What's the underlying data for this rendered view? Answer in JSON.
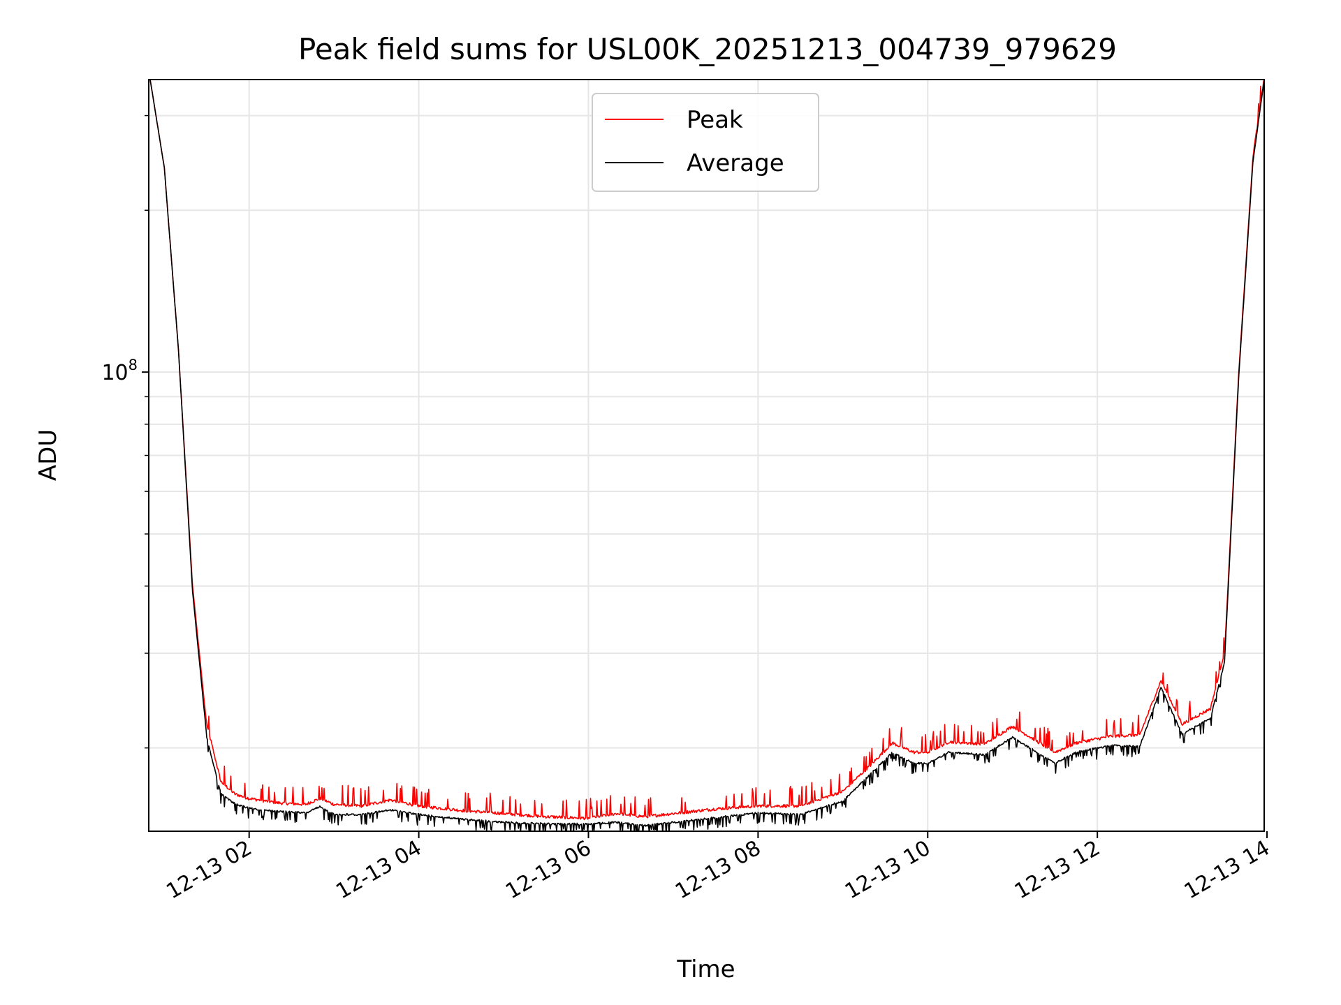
{
  "chart_data": {
    "type": "line",
    "title": "Peak field sums for USL00K_20251213_004739_979629",
    "xlabel": "Time",
    "ylabel": "ADU",
    "y_scale": "log",
    "grid": true,
    "legend_position": "upper center",
    "xlim": [
      "2025-12-13 00:49",
      "2025-12-13 13:58"
    ],
    "ylim": [
      14000000.0,
      350000000.0
    ],
    "x_ticks": [
      {
        "value": "2025-12-13 02:00",
        "label": "12-13 02"
      },
      {
        "value": "2025-12-13 04:00",
        "label": "12-13 04"
      },
      {
        "value": "2025-12-13 06:00",
        "label": "12-13 06"
      },
      {
        "value": "2025-12-13 08:00",
        "label": "12-13 08"
      },
      {
        "value": "2025-12-13 10:00",
        "label": "12-13 10"
      },
      {
        "value": "2025-12-13 12:00",
        "label": "12-13 12"
      },
      {
        "value": "2025-12-13 14:00",
        "label": "12-13 14"
      }
    ],
    "y_ticks": [
      {
        "value": 100000000,
        "base": "10",
        "exp": "8"
      }
    ],
    "series": [
      {
        "name": "Peak",
        "color": "#ff0000",
        "x": [
          "2025-12-13 00:50",
          "2025-12-13 01:00",
          "2025-12-13 01:10",
          "2025-12-13 01:20",
          "2025-12-13 01:30",
          "2025-12-13 01:40",
          "2025-12-13 01:50",
          "2025-12-13 02:00",
          "2025-12-13 02:20",
          "2025-12-13 02:40",
          "2025-12-13 02:50",
          "2025-12-13 03:00",
          "2025-12-13 03:20",
          "2025-12-13 03:40",
          "2025-12-13 04:00",
          "2025-12-13 04:30",
          "2025-12-13 05:00",
          "2025-12-13 05:30",
          "2025-12-13 06:00",
          "2025-12-13 06:20",
          "2025-12-13 06:40",
          "2025-12-13 07:00",
          "2025-12-13 07:30",
          "2025-12-13 08:00",
          "2025-12-13 08:30",
          "2025-12-13 09:00",
          "2025-12-13 09:20",
          "2025-12-13 09:35",
          "2025-12-13 09:50",
          "2025-12-13 10:00",
          "2025-12-13 10:15",
          "2025-12-13 10:40",
          "2025-12-13 11:00",
          "2025-12-13 11:30",
          "2025-12-13 11:45",
          "2025-12-13 12:10",
          "2025-12-13 12:30",
          "2025-12-13 12:45",
          "2025-12-13 13:00",
          "2025-12-13 13:20",
          "2025-12-13 13:30",
          "2025-12-13 13:40",
          "2025-12-13 13:50",
          "2025-12-13 13:58"
        ],
        "y": [
          350000000,
          240000000,
          110000000,
          40000000,
          22000000,
          17200000,
          16300000,
          16000000,
          15700000,
          15600000,
          16000000,
          15600000,
          15500000,
          15900000,
          15500000,
          15200000,
          15000000,
          14800000,
          14700000,
          15000000,
          14800000,
          15000000,
          15300000,
          15500000,
          15500000,
          16500000,
          18500000,
          20300000,
          19500000,
          19500000,
          20400000,
          20200000,
          21800000,
          19500000,
          20300000,
          20900000,
          21000000,
          26500000,
          22000000,
          23500000,
          30000000,
          100000000,
          250000000,
          350000000
        ],
        "spike_noise": true
      },
      {
        "name": "Average",
        "color": "#000000",
        "x": [
          "2025-12-13 00:50",
          "2025-12-13 01:00",
          "2025-12-13 01:10",
          "2025-12-13 01:20",
          "2025-12-13 01:30",
          "2025-12-13 01:40",
          "2025-12-13 01:50",
          "2025-12-13 02:00",
          "2025-12-13 02:20",
          "2025-12-13 02:40",
          "2025-12-13 02:50",
          "2025-12-13 03:00",
          "2025-12-13 03:20",
          "2025-12-13 03:40",
          "2025-12-13 04:00",
          "2025-12-13 04:30",
          "2025-12-13 05:00",
          "2025-12-13 05:30",
          "2025-12-13 06:00",
          "2025-12-13 06:20",
          "2025-12-13 06:40",
          "2025-12-13 07:00",
          "2025-12-13 07:30",
          "2025-12-13 08:00",
          "2025-12-13 08:30",
          "2025-12-13 09:00",
          "2025-12-13 09:20",
          "2025-12-13 09:35",
          "2025-12-13 09:50",
          "2025-12-13 10:00",
          "2025-12-13 10:15",
          "2025-12-13 10:40",
          "2025-12-13 11:00",
          "2025-12-13 11:30",
          "2025-12-13 11:45",
          "2025-12-13 12:10",
          "2025-12-13 12:30",
          "2025-12-13 12:45",
          "2025-12-13 13:00",
          "2025-12-13 13:20",
          "2025-12-13 13:30",
          "2025-12-13 13:40",
          "2025-12-13 13:50",
          "2025-12-13 13:58"
        ],
        "y": [
          350000000,
          240000000,
          110000000,
          39000000,
          21000000,
          16500000,
          15800000,
          15500000,
          15300000,
          15200000,
          15600000,
          15100000,
          15100000,
          15400000,
          15100000,
          14800000,
          14600000,
          14500000,
          14500000,
          14600000,
          14400000,
          14600000,
          14900000,
          15200000,
          15100000,
          16000000,
          18000000,
          19700000,
          18800000,
          18800000,
          19700000,
          19500000,
          21000000,
          18800000,
          19700000,
          20300000,
          20200000,
          26000000,
          21300000,
          22800000,
          29000000,
          98000000,
          245000000,
          350000000
        ],
        "spike_noise": true
      }
    ]
  }
}
